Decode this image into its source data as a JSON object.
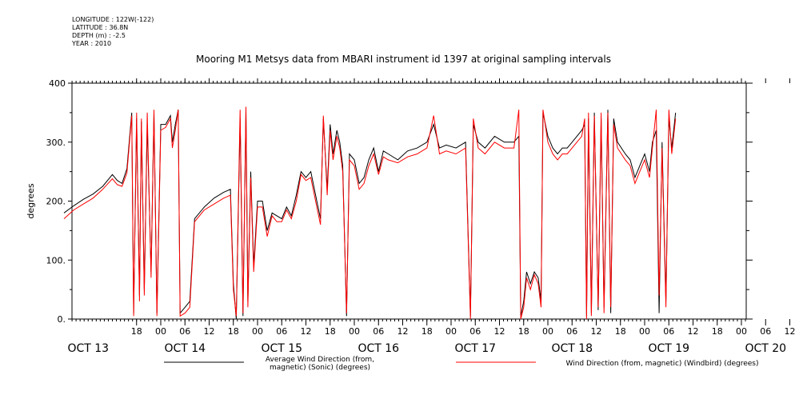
{
  "meta": {
    "longitude": "LONGITUDE : 122W(-122)",
    "latitude": "LATITUDE : 36.8N",
    "depth": "DEPTH (m) : -2.5",
    "year": "YEAR : 2010"
  },
  "chart_data": {
    "type": "line",
    "title": "Mooring M1 Metsys data from MBARI instrument id 1397 at original sampling intervals",
    "ylabel": "degrees",
    "xlabel": "",
    "ylim": [
      0,
      400
    ],
    "yticks": [
      "0.",
      "100.",
      "200.",
      "300.",
      "400"
    ],
    "yticks_values": [
      0,
      100,
      200,
      300,
      400
    ],
    "hour_tick_labels": [
      "18",
      "00",
      "06",
      "12",
      "18",
      "00",
      "06",
      "12",
      "18",
      "00",
      "06",
      "12",
      "18",
      "00",
      "06",
      "12",
      "18",
      "00",
      "06",
      "12",
      "18",
      "00",
      "06",
      "12",
      "18",
      "00",
      "06",
      "12",
      "18",
      "00",
      "06",
      "12"
    ],
    "date_labels": [
      "OCT 13",
      "OCT 14",
      "OCT 15",
      "OCT 16",
      "OCT 17",
      "OCT 18",
      "OCT 19",
      "OCT 20"
    ],
    "grid": false,
    "legend_position": "bottom",
    "series": [
      {
        "name": "Average Wind Direction (from, magnetic) (Sonic) (degrees)",
        "color": "#000000",
        "points": [
          [
            13.0,
            180
          ],
          [
            13.1,
            192
          ],
          [
            13.2,
            203
          ],
          [
            13.3,
            212
          ],
          [
            13.4,
            225
          ],
          [
            13.5,
            245
          ],
          [
            13.55,
            235
          ],
          [
            13.6,
            230
          ],
          [
            13.65,
            255
          ],
          [
            13.7,
            350
          ],
          [
            13.72,
            10
          ],
          [
            13.75,
            340
          ],
          [
            13.78,
            40
          ],
          [
            13.8,
            335
          ],
          [
            13.83,
            50
          ],
          [
            13.86,
            330
          ],
          [
            13.9,
            80
          ],
          [
            13.93,
            350
          ],
          [
            13.96,
            10
          ],
          [
            14.0,
            330
          ],
          [
            14.05,
            330
          ],
          [
            14.1,
            345
          ],
          [
            14.12,
            300
          ],
          [
            14.15,
            330
          ],
          [
            14.18,
            355
          ],
          [
            14.2,
            10
          ],
          [
            14.25,
            20
          ],
          [
            14.3,
            30
          ],
          [
            14.35,
            170
          ],
          [
            14.45,
            190
          ],
          [
            14.55,
            205
          ],
          [
            14.65,
            215
          ],
          [
            14.72,
            220
          ],
          [
            14.75,
            60
          ],
          [
            14.78,
            0
          ],
          [
            14.82,
            340
          ],
          [
            14.85,
            5
          ],
          [
            14.88,
            355
          ],
          [
            14.9,
            30
          ],
          [
            14.93,
            250
          ],
          [
            14.96,
            90
          ],
          [
            15.0,
            200
          ],
          [
            15.05,
            200
          ],
          [
            15.1,
            150
          ],
          [
            15.15,
            180
          ],
          [
            15.2,
            175
          ],
          [
            15.25,
            170
          ],
          [
            15.3,
            190
          ],
          [
            15.35,
            175
          ],
          [
            15.4,
            210
          ],
          [
            15.45,
            250
          ],
          [
            15.5,
            240
          ],
          [
            15.55,
            250
          ],
          [
            15.6,
            210
          ],
          [
            15.65,
            170
          ],
          [
            15.68,
            340
          ],
          [
            15.72,
            220
          ],
          [
            15.75,
            330
          ],
          [
            15.78,
            280
          ],
          [
            15.82,
            320
          ],
          [
            15.85,
            300
          ],
          [
            15.88,
            260
          ],
          [
            15.92,
            5
          ],
          [
            15.95,
            280
          ],
          [
            16.0,
            270
          ],
          [
            16.05,
            230
          ],
          [
            16.1,
            240
          ],
          [
            16.15,
            270
          ],
          [
            16.2,
            290
          ],
          [
            16.25,
            250
          ],
          [
            16.3,
            285
          ],
          [
            16.35,
            280
          ],
          [
            16.45,
            270
          ],
          [
            16.55,
            285
          ],
          [
            16.65,
            290
          ],
          [
            16.75,
            300
          ],
          [
            16.82,
            330
          ],
          [
            16.88,
            290
          ],
          [
            16.95,
            295
          ],
          [
            17.05,
            290
          ],
          [
            17.15,
            300
          ],
          [
            17.2,
            5
          ],
          [
            17.23,
            330
          ],
          [
            17.28,
            300
          ],
          [
            17.35,
            290
          ],
          [
            17.45,
            310
          ],
          [
            17.55,
            300
          ],
          [
            17.65,
            300
          ],
          [
            17.7,
            310
          ],
          [
            17.72,
            5
          ],
          [
            17.75,
            30
          ],
          [
            17.78,
            80
          ],
          [
            17.82,
            60
          ],
          [
            17.86,
            80
          ],
          [
            17.9,
            70
          ],
          [
            17.93,
            30
          ],
          [
            17.95,
            350
          ],
          [
            18.0,
            310
          ],
          [
            18.05,
            290
          ],
          [
            18.1,
            280
          ],
          [
            18.15,
            290
          ],
          [
            18.2,
            290
          ],
          [
            18.25,
            300
          ],
          [
            18.3,
            310
          ],
          [
            18.35,
            320
          ],
          [
            18.38,
            330
          ],
          [
            18.4,
            5
          ],
          [
            18.42,
            340
          ],
          [
            18.45,
            10
          ],
          [
            18.48,
            350
          ],
          [
            18.52,
            15
          ],
          [
            18.55,
            340
          ],
          [
            18.58,
            20
          ],
          [
            18.62,
            355
          ],
          [
            18.65,
            10
          ],
          [
            18.68,
            340
          ],
          [
            18.72,
            300
          ],
          [
            18.8,
            280
          ],
          [
            18.85,
            270
          ],
          [
            18.9,
            240
          ],
          [
            18.95,
            260
          ],
          [
            19.0,
            280
          ],
          [
            19.05,
            250
          ],
          [
            19.08,
            300
          ],
          [
            19.12,
            320
          ],
          [
            19.15,
            10
          ],
          [
            19.18,
            300
          ],
          [
            19.22,
            30
          ],
          [
            19.25,
            340
          ],
          [
            19.28,
            290
          ],
          [
            19.32,
            350
          ]
        ]
      },
      {
        "name": "Wind Direction (from, magnetic) (Windbird) (degrees)",
        "color": "#ff0000",
        "points": [
          [
            13.0,
            170
          ],
          [
            13.1,
            185
          ],
          [
            13.2,
            195
          ],
          [
            13.3,
            205
          ],
          [
            13.4,
            220
          ],
          [
            13.5,
            238
          ],
          [
            13.55,
            228
          ],
          [
            13.6,
            225
          ],
          [
            13.65,
            248
          ],
          [
            13.7,
            345
          ],
          [
            13.72,
            5
          ],
          [
            13.75,
            350
          ],
          [
            13.78,
            30
          ],
          [
            13.8,
            340
          ],
          [
            13.83,
            40
          ],
          [
            13.86,
            350
          ],
          [
            13.9,
            70
          ],
          [
            13.93,
            355
          ],
          [
            13.96,
            5
          ],
          [
            14.0,
            320
          ],
          [
            14.05,
            325
          ],
          [
            14.1,
            340
          ],
          [
            14.12,
            290
          ],
          [
            14.15,
            320
          ],
          [
            14.18,
            355
          ],
          [
            14.2,
            5
          ],
          [
            14.25,
            10
          ],
          [
            14.3,
            20
          ],
          [
            14.35,
            165
          ],
          [
            14.45,
            185
          ],
          [
            14.55,
            195
          ],
          [
            14.65,
            205
          ],
          [
            14.72,
            210
          ],
          [
            14.75,
            50
          ],
          [
            14.78,
            5
          ],
          [
            14.82,
            355
          ],
          [
            14.85,
            10
          ],
          [
            14.88,
            360
          ],
          [
            14.9,
            20
          ],
          [
            14.93,
            240
          ],
          [
            14.96,
            80
          ],
          [
            15.0,
            190
          ],
          [
            15.05,
            190
          ],
          [
            15.1,
            140
          ],
          [
            15.15,
            175
          ],
          [
            15.2,
            165
          ],
          [
            15.25,
            165
          ],
          [
            15.3,
            185
          ],
          [
            15.35,
            170
          ],
          [
            15.4,
            200
          ],
          [
            15.45,
            245
          ],
          [
            15.5,
            235
          ],
          [
            15.55,
            240
          ],
          [
            15.6,
            200
          ],
          [
            15.65,
            160
          ],
          [
            15.68,
            345
          ],
          [
            15.72,
            210
          ],
          [
            15.75,
            320
          ],
          [
            15.78,
            270
          ],
          [
            15.82,
            310
          ],
          [
            15.85,
            290
          ],
          [
            15.88,
            250
          ],
          [
            15.92,
            10
          ],
          [
            15.95,
            270
          ],
          [
            16.0,
            260
          ],
          [
            16.05,
            220
          ],
          [
            16.1,
            230
          ],
          [
            16.15,
            260
          ],
          [
            16.2,
            280
          ],
          [
            16.25,
            245
          ],
          [
            16.3,
            275
          ],
          [
            16.35,
            270
          ],
          [
            16.45,
            265
          ],
          [
            16.55,
            275
          ],
          [
            16.65,
            280
          ],
          [
            16.75,
            290
          ],
          [
            16.82,
            345
          ],
          [
            16.88,
            280
          ],
          [
            16.95,
            285
          ],
          [
            17.05,
            280
          ],
          [
            17.15,
            290
          ],
          [
            17.2,
            0
          ],
          [
            17.23,
            340
          ],
          [
            17.28,
            290
          ],
          [
            17.35,
            280
          ],
          [
            17.45,
            300
          ],
          [
            17.55,
            290
          ],
          [
            17.65,
            290
          ],
          [
            17.7,
            355
          ],
          [
            17.72,
            0
          ],
          [
            17.75,
            20
          ],
          [
            17.78,
            70
          ],
          [
            17.82,
            50
          ],
          [
            17.86,
            75
          ],
          [
            17.9,
            60
          ],
          [
            17.93,
            20
          ],
          [
            17.95,
            355
          ],
          [
            18.0,
            300
          ],
          [
            18.05,
            280
          ],
          [
            18.1,
            270
          ],
          [
            18.15,
            280
          ],
          [
            18.2,
            280
          ],
          [
            18.25,
            290
          ],
          [
            18.3,
            300
          ],
          [
            18.35,
            310
          ],
          [
            18.38,
            340
          ],
          [
            18.4,
            0
          ],
          [
            18.42,
            350
          ],
          [
            18.45,
            5
          ],
          [
            18.48,
            345
          ],
          [
            18.52,
            20
          ],
          [
            18.55,
            350
          ],
          [
            18.58,
            10
          ],
          [
            18.62,
            350
          ],
          [
            18.65,
            20
          ],
          [
            18.68,
            330
          ],
          [
            18.72,
            290
          ],
          [
            18.8,
            270
          ],
          [
            18.85,
            260
          ],
          [
            18.9,
            230
          ],
          [
            18.95,
            250
          ],
          [
            19.0,
            270
          ],
          [
            19.05,
            240
          ],
          [
            19.08,
            290
          ],
          [
            19.12,
            355
          ],
          [
            19.15,
            40
          ],
          [
            19.18,
            290
          ],
          [
            19.22,
            20
          ],
          [
            19.25,
            355
          ],
          [
            19.28,
            280
          ],
          [
            19.32,
            340
          ]
        ]
      }
    ]
  }
}
